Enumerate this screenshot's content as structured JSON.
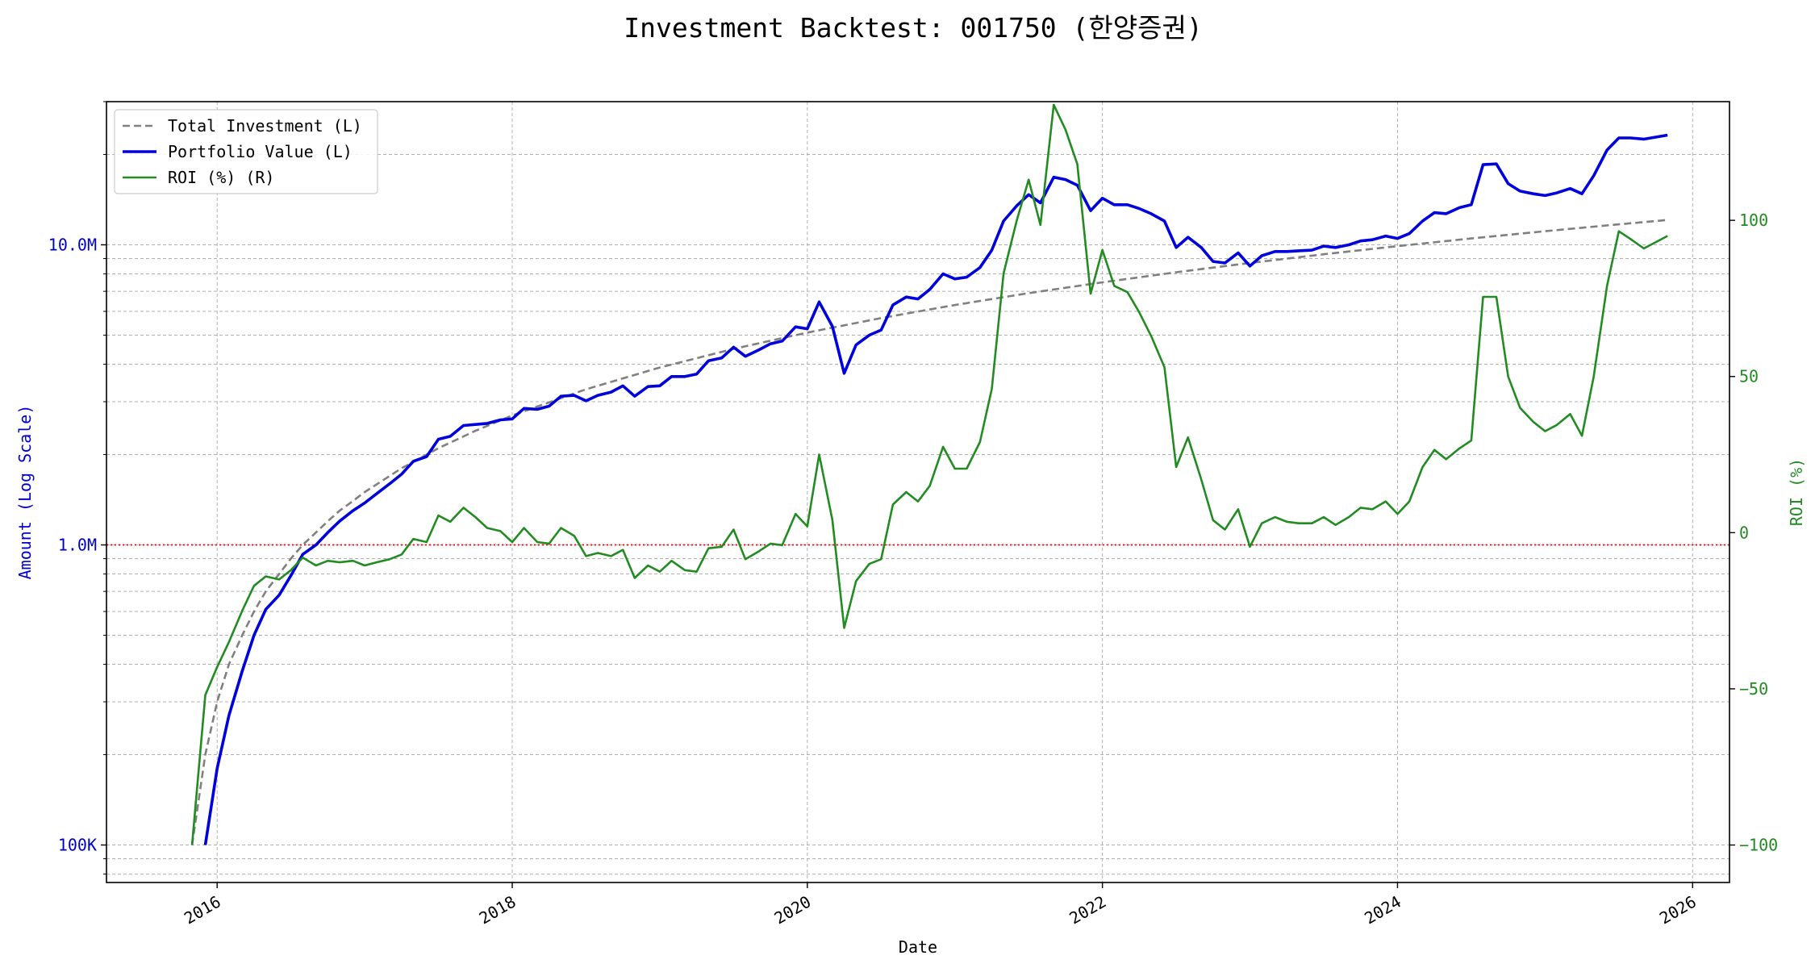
{
  "chart_data": {
    "type": "line",
    "title": "Investment Backtest: 001750 (한양증권)",
    "xlabel": "Date",
    "ylabel_left": "Amount (Log Scale)",
    "ylabel_right": "ROI (%)",
    "x_ticks": [
      "2016",
      "2018",
      "2020",
      "2022",
      "2024",
      "2026"
    ],
    "x_range": [
      2015.25,
      2026.25
    ],
    "left_axis": {
      "scale": "log",
      "range": [
        75000,
        30000000
      ],
      "ticks": [
        {
          "value": 100000,
          "label": "100K"
        },
        {
          "value": 1000000,
          "label": "1.0M"
        },
        {
          "value": 10000000,
          "label": "10.0M"
        }
      ],
      "color": "#0000cc"
    },
    "right_axis": {
      "scale": "linear",
      "range": [
        -112,
        138
      ],
      "ticks": [
        {
          "value": -100,
          "label": "−100"
        },
        {
          "value": -50,
          "label": "−50"
        },
        {
          "value": 0,
          "label": "0"
        },
        {
          "value": 50,
          "label": "50"
        },
        {
          "value": 100,
          "label": "100"
        }
      ],
      "color": "#228B22"
    },
    "reference_line": {
      "axis": "left",
      "value": 1000000,
      "color": "#ff0000"
    },
    "grid": true,
    "legend_position": "upper-left",
    "series": [
      {
        "name": "Total Investment (L)",
        "axis": "left",
        "color": "#808080",
        "style": "dashed",
        "x": [
          2015.83,
          2015.92,
          2016.0,
          2016.08,
          2016.17,
          2016.25,
          2016.33,
          2016.42,
          2016.5,
          2016.58,
          2016.67,
          2016.75,
          2016.83,
          2016.92,
          2017.0,
          2017.25,
          2017.5,
          2017.75,
          2018.0,
          2018.5,
          2019.0,
          2019.5,
          2020.0,
          2020.5,
          2021.0,
          2021.5,
          2022.0,
          2022.5,
          2023.0,
          2023.5,
          2024.0,
          2024.5,
          2025.0,
          2025.5,
          2025.83
        ],
        "values": [
          100000,
          200000,
          300000,
          400000,
          500000,
          600000,
          700000,
          800000,
          900000,
          1000000,
          1100000,
          1200000,
          1300000,
          1400000,
          1500000,
          1800000,
          2100000,
          2400000,
          2700000,
          3300000,
          3900000,
          4500000,
          5100000,
          5700000,
          6300000,
          6900000,
          7500000,
          8100000,
          8700000,
          9300000,
          9900000,
          10500000,
          11100000,
          11700000,
          12100000
        ]
      },
      {
        "name": "Portfolio Value (L)",
        "axis": "left",
        "color": "#0000dd",
        "style": "solid",
        "x": [
          2015.92,
          2016.0,
          2016.08,
          2016.17,
          2016.25,
          2016.33,
          2016.42,
          2016.5,
          2016.58,
          2016.67,
          2016.75,
          2016.83,
          2016.92,
          2017.0,
          2017.08,
          2017.17,
          2017.25,
          2017.33,
          2017.42,
          2017.5,
          2017.58,
          2017.67,
          2017.75,
          2017.83,
          2017.92,
          2018.0,
          2018.08,
          2018.17,
          2018.25,
          2018.33,
          2018.42,
          2018.5,
          2018.58,
          2018.67,
          2018.75,
          2018.83,
          2018.92,
          2019.0,
          2019.08,
          2019.17,
          2019.25,
          2019.33,
          2019.42,
          2019.5,
          2019.58,
          2019.67,
          2019.75,
          2019.83,
          2019.92,
          2020.0,
          2020.08,
          2020.17,
          2020.25,
          2020.33,
          2020.42,
          2020.5,
          2020.58,
          2020.67,
          2020.75,
          2020.83,
          2020.92,
          2021.0,
          2021.08,
          2021.17,
          2021.25,
          2021.33,
          2021.42,
          2021.5,
          2021.58,
          2021.67,
          2021.75,
          2021.83,
          2021.92,
          2022.0,
          2022.08,
          2022.17,
          2022.25,
          2022.33,
          2022.42,
          2022.5,
          2022.58,
          2022.67,
          2022.75,
          2022.83,
          2022.92,
          2023.0,
          2023.08,
          2023.17,
          2023.25,
          2023.33,
          2023.42,
          2023.5,
          2023.58,
          2023.67,
          2023.75,
          2023.83,
          2023.92,
          2024.0,
          2024.08,
          2024.17,
          2024.25,
          2024.33,
          2024.42,
          2024.5,
          2024.58,
          2024.67,
          2024.75,
          2024.83,
          2024.92,
          2025.0,
          2025.08,
          2025.17,
          2025.25,
          2025.33,
          2025.42,
          2025.5,
          2025.58,
          2025.67,
          2025.83
        ],
        "values": [
          100000,
          180000,
          270000,
          380000,
          500000,
          610000,
          680000,
          790000,
          930000,
          1000000,
          1100000,
          1200000,
          1300000,
          1380000,
          1480000,
          1600000,
          1720000,
          1900000,
          1970000,
          2250000,
          2300000,
          2500000,
          2520000,
          2540000,
          2610000,
          2630000,
          2850000,
          2830000,
          2900000,
          3130000,
          3150000,
          3020000,
          3150000,
          3230000,
          3390000,
          3130000,
          3370000,
          3390000,
          3640000,
          3640000,
          3710000,
          4110000,
          4200000,
          4560000,
          4250000,
          4460000,
          4680000,
          4780000,
          5330000,
          5250000,
          6450000,
          5350000,
          3730000,
          4640000,
          5000000,
          5200000,
          6300000,
          6700000,
          6600000,
          7100000,
          8000000,
          7700000,
          7800000,
          8400000,
          9600000,
          12000000,
          13500000,
          14700000,
          13800000,
          16800000,
          16500000,
          15800000,
          13000000,
          14300000,
          13600000,
          13600000,
          13200000,
          12700000,
          12000000,
          9800000,
          10600000,
          9800000,
          8800000,
          8700000,
          9400000,
          8500000,
          9200000,
          9500000,
          9500000,
          9550000,
          9600000,
          9900000,
          9800000,
          10000000,
          10300000,
          10400000,
          10700000,
          10500000,
          10900000,
          12000000,
          12800000,
          12700000,
          13300000,
          13600000,
          18500000,
          18600000,
          16000000,
          15100000,
          14800000,
          14600000,
          14900000,
          15400000,
          14800000,
          17000000,
          20700000,
          22700000,
          22700000,
          22500000,
          23200000
        ]
      },
      {
        "name": "ROI (%) (R)",
        "axis": "right",
        "color": "#228B22",
        "style": "solid",
        "x": [
          2015.83,
          2015.92,
          2016.0,
          2016.08,
          2016.17,
          2016.25,
          2016.33,
          2016.42,
          2016.5,
          2016.58,
          2016.67,
          2016.75,
          2016.83,
          2016.92,
          2017.0,
          2017.08,
          2017.17,
          2017.25,
          2017.33,
          2017.42,
          2017.5,
          2017.58,
          2017.67,
          2017.75,
          2017.83,
          2017.92,
          2018.0,
          2018.08,
          2018.17,
          2018.25,
          2018.33,
          2018.42,
          2018.5,
          2018.58,
          2018.67,
          2018.75,
          2018.83,
          2018.92,
          2019.0,
          2019.08,
          2019.17,
          2019.25,
          2019.33,
          2019.42,
          2019.5,
          2019.58,
          2019.67,
          2019.75,
          2019.83,
          2019.92,
          2020.0,
          2020.08,
          2020.17,
          2020.25,
          2020.33,
          2020.42,
          2020.5,
          2020.58,
          2020.67,
          2020.75,
          2020.83,
          2020.92,
          2021.0,
          2021.08,
          2021.17,
          2021.25,
          2021.33,
          2021.42,
          2021.5,
          2021.58,
          2021.67,
          2021.75,
          2021.83,
          2021.92,
          2022.0,
          2022.08,
          2022.17,
          2022.25,
          2022.33,
          2022.42,
          2022.5,
          2022.58,
          2022.67,
          2022.75,
          2022.83,
          2022.92,
          2023.0,
          2023.08,
          2023.17,
          2023.25,
          2023.33,
          2023.42,
          2023.5,
          2023.58,
          2023.67,
          2023.75,
          2023.83,
          2023.92,
          2024.0,
          2024.08,
          2024.17,
          2024.25,
          2024.33,
          2024.42,
          2024.5,
          2024.58,
          2024.67,
          2024.75,
          2024.83,
          2024.92,
          2025.0,
          2025.08,
          2025.17,
          2025.25,
          2025.33,
          2025.42,
          2025.5,
          2025.58,
          2025.67,
          2025.83
        ],
        "values": [
          -100,
          -52,
          -43,
          -35,
          -25,
          -17,
          -14,
          -15,
          -12,
          -8,
          -10.5,
          -9,
          -9.5,
          -9,
          -10.5,
          -9.5,
          -8.5,
          -7,
          -2,
          -3,
          5.5,
          3.5,
          8,
          5,
          1.5,
          0.5,
          -3,
          1.5,
          -3,
          -3.5,
          1.5,
          -1,
          -7.5,
          -6.5,
          -7.5,
          -5.5,
          -14.5,
          -10.5,
          -12.5,
          -9,
          -12,
          -12.5,
          -5,
          -4.5,
          1,
          -8.5,
          -6,
          -3.5,
          -4,
          6,
          2,
          25,
          4,
          -30.5,
          -15.5,
          -10,
          -8.5,
          9,
          13,
          10,
          15,
          27.5,
          20.5,
          20.5,
          29,
          46,
          83,
          100,
          113,
          98.5,
          137,
          129,
          118,
          76.5,
          90.5,
          79,
          77,
          70.5,
          63,
          53,
          21,
          30.5,
          17,
          4,
          1,
          7.5,
          -4.5,
          3,
          5,
          3.5,
          3,
          3,
          5,
          2.5,
          5,
          8,
          7.5,
          10,
          6,
          10,
          21,
          26.5,
          23.5,
          27,
          29.5,
          75.5,
          75.5,
          50,
          40,
          35.5,
          32.5,
          34.5,
          38,
          31,
          50,
          79,
          96.5,
          94,
          91,
          95
        ]
      }
    ]
  }
}
